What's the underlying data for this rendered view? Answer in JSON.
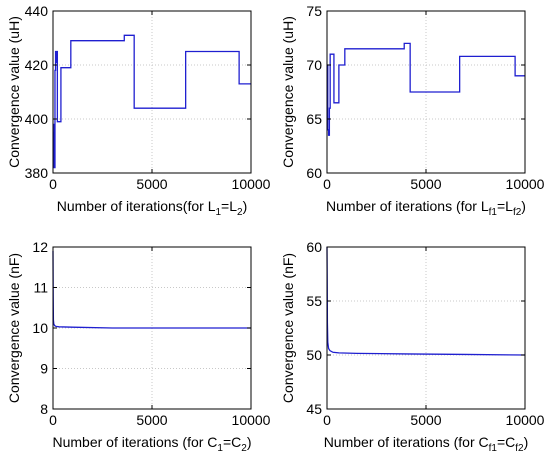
{
  "chart_data": [
    {
      "type": "line",
      "xlabel": "Number of iterations(for L",
      "xlabel_parts": [
        "Number of iterations(for L",
        "1",
        "=L",
        "2",
        ")"
      ],
      "ylabel": "Convergence value (uH)",
      "xlim": [
        0,
        10000
      ],
      "ylim": [
        380,
        440
      ],
      "xticks": [
        "0",
        "5000",
        "10000"
      ],
      "yticks": [
        "380",
        "400",
        "420",
        "440"
      ],
      "grid": true,
      "color": "#1f1fd0",
      "series": [
        {
          "x": [
            0,
            40,
            40,
            60,
            60,
            80,
            80,
            100,
            100,
            130,
            130,
            180,
            180,
            200,
            200,
            220,
            220,
            400,
            400,
            600,
            600,
            900,
            900,
            3600,
            3600,
            4100,
            4100,
            6700,
            6700,
            9400,
            9400,
            10000
          ],
          "y": [
            395,
            395,
            382,
            382,
            398,
            398,
            382,
            382,
            418,
            418,
            425,
            425,
            421,
            421,
            425,
            425,
            399,
            399,
            419,
            419,
            419,
            419,
            429,
            429,
            431,
            431,
            404,
            404,
            425,
            425,
            413,
            413
          ]
        }
      ]
    },
    {
      "type": "line",
      "xlabel": "Number of iterations (for L",
      "xlabel_parts": [
        "Number of iterations (for L",
        "f1",
        "=L",
        "f2",
        ")"
      ],
      "ylabel": "Convergence value (uH)",
      "xlim": [
        0,
        10000
      ],
      "ylim": [
        60,
        75
      ],
      "xticks": [
        "0",
        "5000",
        "10000"
      ],
      "yticks": [
        "60",
        "65",
        "70",
        "75"
      ],
      "grid": true,
      "color": "#1f1fd0",
      "series": [
        {
          "x": [
            0,
            40,
            40,
            80,
            80,
            120,
            120,
            160,
            160,
            220,
            220,
            350,
            350,
            600,
            600,
            900,
            900,
            3900,
            3900,
            4200,
            4200,
            6700,
            6700,
            9500,
            9500,
            10000
          ],
          "y": [
            70,
            70,
            64,
            64,
            63.5,
            63.5,
            66,
            66,
            71,
            71,
            71,
            71,
            66.5,
            66.5,
            70,
            70,
            71.5,
            71.5,
            72,
            72,
            67.5,
            67.5,
            70.8,
            70.8,
            69,
            69
          ]
        }
      ]
    },
    {
      "type": "line",
      "xlabel": "Number of iterations (for C",
      "xlabel_parts": [
        "Number of iterations (for C",
        "1",
        "=C",
        "2",
        ")"
      ],
      "ylabel": "Convergence value (nF)",
      "xlim": [
        0,
        10000
      ],
      "ylim": [
        8,
        12
      ],
      "xticks": [
        "0",
        "5000",
        "10000"
      ],
      "yticks": [
        "8",
        "9",
        "10",
        "11",
        "12"
      ],
      "grid": true,
      "color": "#1f1fd0",
      "series": [
        {
          "x": [
            0,
            10,
            20,
            40,
            80,
            150,
            300,
            1000,
            3000,
            6000,
            10000
          ],
          "y": [
            11.9,
            10.8,
            10.2,
            10.1,
            10.06,
            10.04,
            10.03,
            10.02,
            10.0,
            10.0,
            10.0
          ]
        }
      ]
    },
    {
      "type": "line",
      "xlabel": "Number of iterations (for C",
      "xlabel_parts": [
        "Number of iterations (for C",
        "f1",
        "=C",
        "f2",
        ")"
      ],
      "ylabel": "Convergence value (nF)",
      "xlim": [
        0,
        10000
      ],
      "ylim": [
        45,
        60
      ],
      "xticks": [
        "0",
        "5000",
        "10000"
      ],
      "yticks": [
        "45",
        "50",
        "55",
        "60"
      ],
      "grid": true,
      "color": "#1f1fd0",
      "series": [
        {
          "x": [
            0,
            10,
            20,
            40,
            80,
            150,
            300,
            600,
            1500,
            4000,
            7000,
            10000
          ],
          "y": [
            60,
            57,
            53,
            51.2,
            50.6,
            50.4,
            50.25,
            50.2,
            50.15,
            50.1,
            50.05,
            50.0
          ]
        }
      ]
    }
  ]
}
